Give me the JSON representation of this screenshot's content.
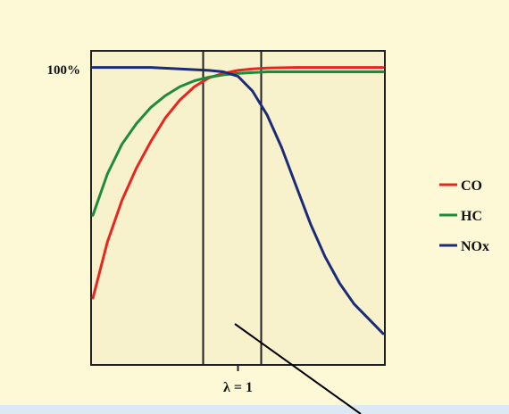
{
  "colors": {
    "background": "#fdf9d6",
    "plot_background": "#f7f1cc",
    "frame": "#202020",
    "bottom_band": "#dce8f4"
  },
  "chart_data": {
    "type": "line",
    "title": "",
    "xlabel": "",
    "ylabel": "",
    "x_tick_label": "λ = 1",
    "y_tick_label": "100%",
    "x_marker": 0.5,
    "xlim": [
      0,
      1
    ],
    "ylim": [
      0,
      1.05
    ],
    "window": [
      0.38,
      0.58
    ],
    "grid": false,
    "legend_position": "right",
    "series": [
      {
        "name": "CO",
        "color": "#e8261f",
        "x": [
          0,
          0.05,
          0.1,
          0.15,
          0.2,
          0.25,
          0.3,
          0.35,
          0.4,
          0.45,
          0.5,
          0.55,
          0.6,
          0.7,
          0.8,
          0.9,
          1.0
        ],
        "y": [
          0.22,
          0.41,
          0.55,
          0.66,
          0.75,
          0.83,
          0.89,
          0.935,
          0.965,
          0.98,
          0.99,
          0.995,
          0.998,
          1.0,
          1.0,
          1.0,
          1.0
        ]
      },
      {
        "name": "HC",
        "color": "#1f8a3a",
        "x": [
          0,
          0.05,
          0.1,
          0.15,
          0.2,
          0.25,
          0.3,
          0.35,
          0.4,
          0.45,
          0.5,
          0.6,
          0.7,
          0.8,
          0.9,
          1.0
        ],
        "y": [
          0.5,
          0.64,
          0.74,
          0.81,
          0.865,
          0.905,
          0.935,
          0.955,
          0.967,
          0.975,
          0.98,
          0.985,
          0.985,
          0.985,
          0.985,
          0.985
        ]
      },
      {
        "name": "NOx",
        "color": "#1c2a7a",
        "x": [
          0,
          0.1,
          0.2,
          0.3,
          0.4,
          0.45,
          0.5,
          0.55,
          0.6,
          0.65,
          0.7,
          0.75,
          0.8,
          0.85,
          0.9,
          0.95,
          1.0
        ],
        "y": [
          1.0,
          1.0,
          1.0,
          0.995,
          0.99,
          0.985,
          0.97,
          0.92,
          0.84,
          0.73,
          0.6,
          0.47,
          0.36,
          0.27,
          0.2,
          0.15,
          0.1
        ]
      }
    ]
  }
}
